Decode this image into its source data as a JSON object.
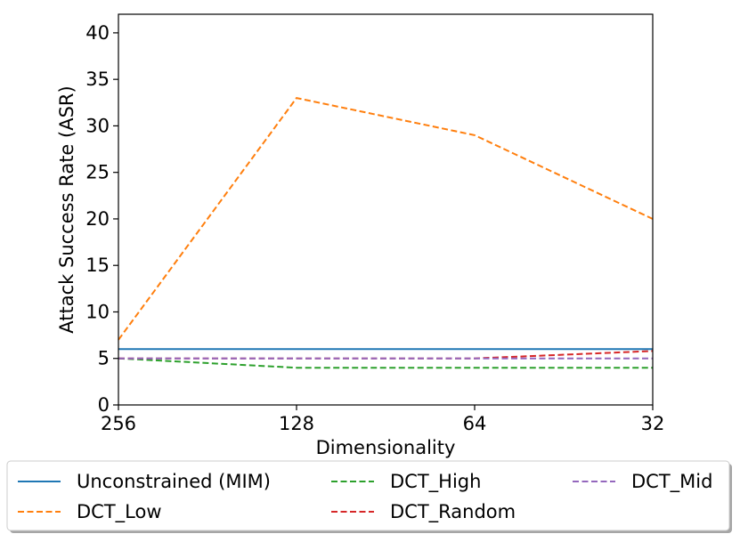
{
  "chart_data": {
    "type": "line",
    "xlabel": "Dimensionality",
    "ylabel": "Attack Success Rate (ASR)",
    "x": [
      "256",
      "128",
      "64",
      "32"
    ],
    "ylim": [
      0,
      42
    ],
    "yticks": [
      "0",
      "5",
      "10",
      "15",
      "20",
      "25",
      "30",
      "35",
      "40"
    ],
    "grid": false,
    "legend_position": "bottom",
    "series": [
      {
        "name": "Unconstrained (MIM)",
        "values": [
          6,
          6,
          6,
          6
        ],
        "color": "#1f77b4",
        "dashed": false
      },
      {
        "name": "DCT_Low",
        "values": [
          7,
          33,
          29,
          20
        ],
        "color": "#ff7f0e",
        "dashed": true
      },
      {
        "name": "DCT_High",
        "values": [
          5,
          4,
          4,
          4
        ],
        "color": "#2ca02c",
        "dashed": true
      },
      {
        "name": "DCT_Random",
        "values": [
          5,
          5,
          5,
          5.8
        ],
        "color": "#d62728",
        "dashed": true
      },
      {
        "name": "DCT_Mid",
        "values": [
          5,
          5,
          5,
          5
        ],
        "color": "#9467bd",
        "dashed": true
      }
    ]
  }
}
